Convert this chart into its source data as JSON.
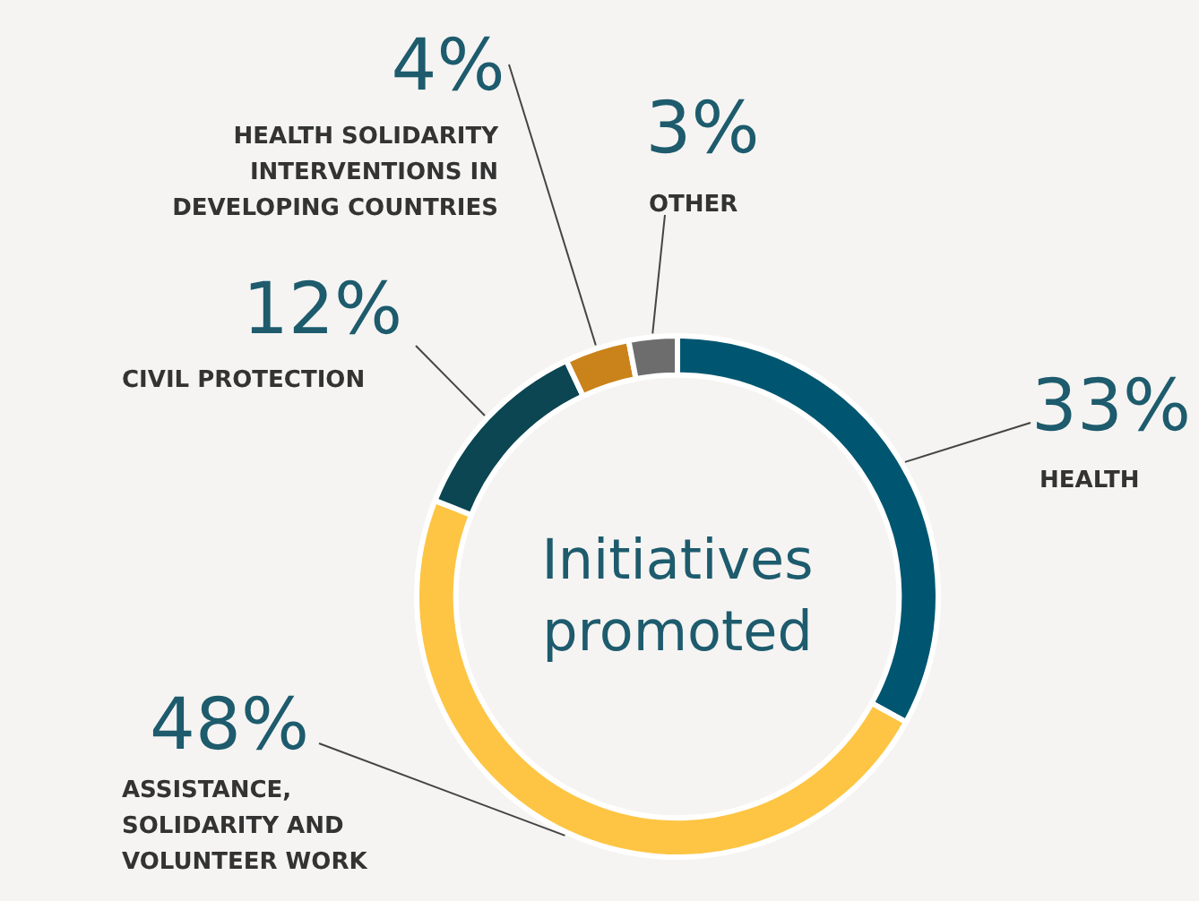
{
  "chart_data": {
    "type": "donut",
    "title": "Initiatives promoted",
    "categories": [
      "HEALTH",
      "ASSISTANCE, SOLIDARITY AND VOLUNTEER WORK",
      "CIVIL PROTECTION",
      "HEALTH SOLIDARITY INTERVENTIONS IN DEVELOPING COUNTRIES",
      "OTHER"
    ],
    "values": [
      33,
      48,
      12,
      4,
      3
    ],
    "value_labels": [
      "33%",
      "48%",
      "12%",
      "4%",
      "3%"
    ],
    "colors": [
      "#005670",
      "#fdc543",
      "#0b4652",
      "#c9831a",
      "#6d6d6d"
    ],
    "legend": false
  }
}
